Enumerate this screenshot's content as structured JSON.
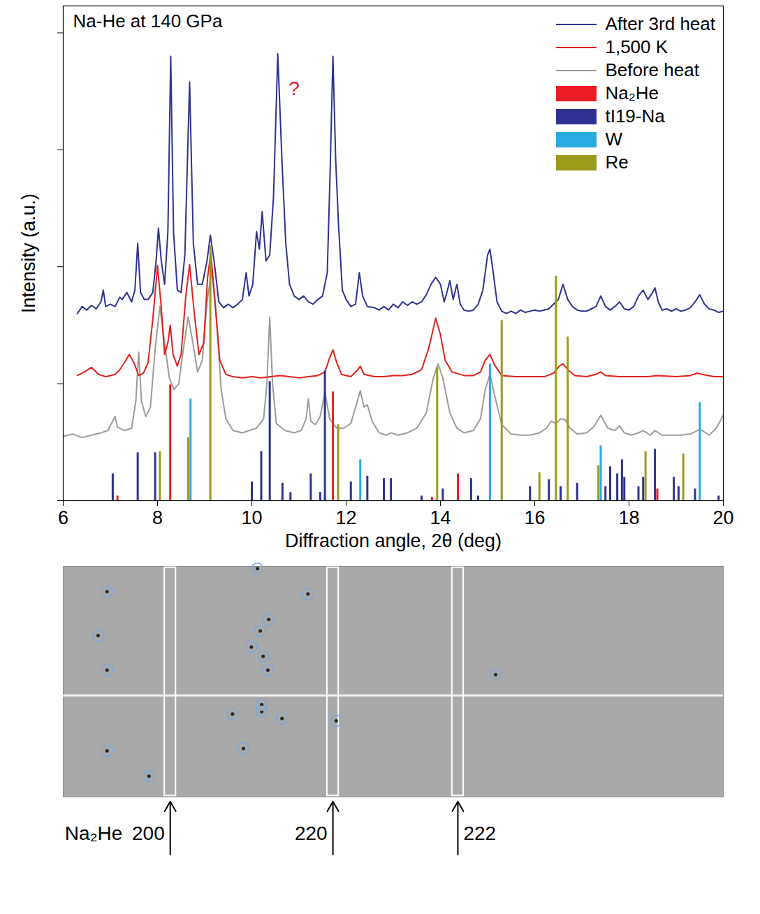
{
  "chart_data": [
    {
      "type": "line",
      "title": "Na-He at 140 GPa",
      "x_label": "Diffraction angle, 2θ (deg)",
      "y_label": "Intensity (a.u.)",
      "xlim": [
        6,
        20
      ],
      "ylim": [
        0,
        4.23
      ],
      "xticks": [
        6,
        8,
        10,
        12,
        14,
        16,
        18,
        20
      ],
      "yticks": [
        0,
        1,
        2,
        3,
        4
      ],
      "tick_labels": "x",
      "legend": "top-right",
      "series": [
        {
          "name": "After 3rd heat",
          "type": "line",
          "color": "#2e3192",
          "x": [
            6.3,
            6.4,
            6.5,
            6.6,
            6.7,
            6.8,
            6.85,
            6.9,
            7.0,
            7.1,
            7.2,
            7.25,
            7.35,
            7.45,
            7.52,
            7.58,
            7.64,
            7.72,
            7.8,
            7.9,
            7.97,
            8.02,
            8.08,
            8.15,
            8.22,
            8.28,
            8.34,
            8.42,
            8.5,
            8.58,
            8.68,
            8.76,
            8.85,
            8.95,
            9.05,
            9.12,
            9.2,
            9.3,
            9.4,
            9.5,
            9.6,
            9.7,
            9.8,
            9.88,
            9.94,
            10.02,
            10.1,
            10.16,
            10.22,
            10.3,
            10.38,
            10.46,
            10.55,
            10.64,
            10.72,
            10.8,
            10.9,
            11.0,
            11.1,
            11.2,
            11.3,
            11.4,
            11.5,
            11.6,
            11.66,
            11.72,
            11.78,
            11.84,
            11.92,
            12.0,
            12.1,
            12.2,
            12.28,
            12.35,
            12.45,
            12.6,
            12.7,
            12.8,
            12.9,
            13.0,
            13.1,
            13.2,
            13.3,
            13.4,
            13.5,
            13.6,
            13.7,
            13.8,
            13.9,
            14.0,
            14.08,
            14.15,
            14.2,
            14.27,
            14.35,
            14.42,
            14.5,
            14.6,
            14.7,
            14.8,
            14.9,
            15.0,
            15.05,
            15.12,
            15.2,
            15.3,
            15.4,
            15.5,
            15.6,
            15.7,
            15.8,
            15.9,
            16.0,
            16.1,
            16.2,
            16.3,
            16.4,
            16.5,
            16.6,
            16.7,
            16.8,
            16.9,
            17.0,
            17.1,
            17.2,
            17.3,
            17.4,
            17.5,
            17.6,
            17.7,
            17.8,
            17.9,
            18.0,
            18.1,
            18.2,
            18.3,
            18.4,
            18.5,
            18.55,
            18.62,
            18.7,
            18.8,
            18.9,
            19.0,
            19.1,
            19.2,
            19.3,
            19.4,
            19.5,
            19.6,
            19.7,
            19.8,
            19.9,
            20.0
          ],
          "values": [
            1.6,
            1.66,
            1.63,
            1.67,
            1.64,
            1.7,
            1.8,
            1.66,
            1.68,
            1.66,
            1.74,
            1.72,
            1.78,
            1.7,
            1.8,
            2.2,
            1.78,
            1.72,
            1.72,
            1.78,
            2.05,
            2.33,
            2.05,
            1.85,
            2.3,
            3.8,
            2.3,
            1.8,
            1.78,
            2.1,
            3.58,
            2.2,
            1.85,
            1.85,
            2.05,
            2.27,
            2.05,
            1.7,
            1.65,
            1.68,
            1.65,
            1.68,
            1.72,
            1.95,
            1.75,
            1.85,
            2.3,
            2.15,
            2.47,
            2.05,
            2.1,
            2.6,
            3.82,
            2.9,
            2.2,
            1.85,
            1.75,
            1.72,
            1.75,
            1.7,
            1.68,
            1.72,
            1.75,
            1.95,
            2.8,
            3.8,
            2.9,
            2.35,
            1.8,
            1.72,
            1.66,
            1.68,
            1.95,
            1.75,
            1.66,
            1.65,
            1.63,
            1.66,
            1.63,
            1.68,
            1.65,
            1.7,
            1.67,
            1.7,
            1.68,
            1.7,
            1.76,
            1.85,
            1.91,
            1.85,
            1.7,
            1.8,
            1.88,
            1.72,
            1.85,
            1.68,
            1.63,
            1.62,
            1.63,
            1.68,
            1.8,
            2.1,
            2.15,
            1.95,
            1.7,
            1.62,
            1.6,
            1.62,
            1.6,
            1.63,
            1.61,
            1.62,
            1.63,
            1.62,
            1.63,
            1.64,
            1.68,
            1.72,
            1.85,
            1.72,
            1.66,
            1.63,
            1.62,
            1.62,
            1.64,
            1.66,
            1.75,
            1.66,
            1.63,
            1.66,
            1.7,
            1.64,
            1.63,
            1.66,
            1.75,
            1.8,
            1.72,
            1.78,
            1.82,
            1.7,
            1.63,
            1.64,
            1.62,
            1.64,
            1.62,
            1.63,
            1.65,
            1.7,
            1.76,
            1.68,
            1.64,
            1.63,
            1.61,
            1.62
          ]
        },
        {
          "name": "1,500 K",
          "type": "line",
          "color": "#e0201b",
          "x": [
            6.3,
            6.45,
            6.6,
            6.75,
            6.9,
            7.0,
            7.1,
            7.2,
            7.3,
            7.4,
            7.5,
            7.6,
            7.7,
            7.8,
            7.9,
            8.0,
            8.08,
            8.15,
            8.22,
            8.27,
            8.33,
            8.42,
            8.5,
            8.6,
            8.68,
            8.78,
            8.88,
            8.98,
            9.06,
            9.13,
            9.22,
            9.32,
            9.45,
            9.6,
            9.8,
            10.0,
            10.2,
            10.4,
            10.6,
            10.8,
            11.0,
            11.2,
            11.4,
            11.55,
            11.65,
            11.72,
            11.8,
            11.9,
            12.1,
            12.25,
            12.3,
            12.38,
            12.6,
            12.8,
            13.0,
            13.2,
            13.4,
            13.6,
            13.75,
            13.9,
            14.0,
            14.1,
            14.25,
            14.5,
            14.7,
            14.85,
            14.95,
            15.05,
            15.15,
            15.3,
            15.6,
            15.9,
            16.2,
            16.4,
            16.52,
            16.6,
            16.7,
            16.85,
            17.1,
            17.3,
            17.4,
            17.5,
            17.8,
            18.1,
            18.4,
            18.6,
            19.0,
            19.3,
            19.45,
            19.55,
            19.8,
            20.0
          ],
          "values": [
            1.07,
            1.1,
            1.14,
            1.08,
            1.06,
            1.07,
            1.08,
            1.12,
            1.18,
            1.25,
            1.18,
            1.07,
            1.09,
            1.18,
            1.55,
            2.01,
            1.65,
            1.25,
            1.35,
            1.5,
            1.25,
            1.15,
            1.25,
            1.75,
            2.02,
            1.6,
            1.25,
            1.35,
            1.9,
            2.12,
            1.7,
            1.2,
            1.08,
            1.06,
            1.05,
            1.06,
            1.05,
            1.06,
            1.07,
            1.06,
            1.05,
            1.06,
            1.07,
            1.1,
            1.22,
            1.29,
            1.18,
            1.08,
            1.06,
            1.12,
            1.15,
            1.08,
            1.06,
            1.06,
            1.07,
            1.07,
            1.08,
            1.12,
            1.3,
            1.56,
            1.42,
            1.2,
            1.1,
            1.07,
            1.07,
            1.1,
            1.2,
            1.25,
            1.16,
            1.07,
            1.06,
            1.06,
            1.06,
            1.09,
            1.15,
            1.17,
            1.12,
            1.07,
            1.06,
            1.08,
            1.1,
            1.07,
            1.06,
            1.06,
            1.06,
            1.07,
            1.06,
            1.07,
            1.09,
            1.08,
            1.06,
            1.06
          ]
        },
        {
          "name": "Before heat",
          "type": "line",
          "color": "#9b9b9b",
          "x": [
            6.0,
            6.2,
            6.4,
            6.6,
            6.8,
            6.95,
            7.05,
            7.1,
            7.15,
            7.3,
            7.45,
            7.54,
            7.6,
            7.66,
            7.75,
            7.85,
            7.95,
            8.05,
            8.15,
            8.25,
            8.35,
            8.45,
            8.55,
            8.65,
            8.75,
            8.85,
            8.95,
            9.05,
            9.15,
            9.25,
            9.35,
            9.45,
            9.6,
            9.8,
            9.95,
            10.1,
            10.25,
            10.32,
            10.38,
            10.44,
            10.52,
            10.7,
            10.9,
            11.05,
            11.15,
            11.2,
            11.25,
            11.35,
            11.45,
            11.55,
            11.65,
            11.8,
            11.95,
            12.1,
            12.2,
            12.3,
            12.38,
            12.45,
            12.55,
            12.7,
            12.85,
            12.95,
            13.1,
            13.3,
            13.5,
            13.7,
            13.85,
            13.95,
            14.05,
            14.2,
            14.35,
            14.5,
            14.7,
            14.85,
            14.95,
            15.05,
            15.15,
            15.3,
            15.5,
            15.7,
            15.9,
            16.1,
            16.25,
            16.35,
            16.45,
            16.55,
            16.65,
            16.75,
            16.9,
            17.1,
            17.25,
            17.4,
            17.55,
            17.7,
            17.8,
            17.9,
            18.05,
            18.2,
            18.3,
            18.45,
            18.55,
            18.7,
            18.9,
            19.1,
            19.3,
            19.45,
            19.55,
            19.7,
            19.85,
            20.0
          ],
          "values": [
            0.55,
            0.57,
            0.54,
            0.56,
            0.58,
            0.6,
            0.68,
            0.72,
            0.63,
            0.6,
            0.62,
            0.85,
            1.27,
            0.85,
            0.72,
            0.8,
            1.3,
            1.66,
            1.35,
            1.05,
            0.95,
            1.0,
            1.3,
            1.57,
            1.35,
            1.1,
            1.2,
            1.7,
            1.97,
            1.55,
            0.95,
            0.7,
            0.6,
            0.58,
            0.6,
            0.62,
            0.7,
            1.0,
            1.57,
            1.0,
            0.66,
            0.6,
            0.58,
            0.6,
            0.7,
            0.87,
            0.68,
            0.65,
            0.72,
            0.93,
            0.7,
            0.62,
            0.62,
            0.66,
            0.8,
            0.94,
            0.8,
            0.82,
            0.68,
            0.58,
            0.56,
            0.58,
            0.56,
            0.58,
            0.62,
            0.75,
            1.05,
            1.17,
            1.05,
            0.75,
            0.62,
            0.58,
            0.6,
            0.7,
            0.95,
            1.08,
            0.9,
            0.65,
            0.57,
            0.56,
            0.56,
            0.58,
            0.62,
            0.68,
            0.66,
            0.7,
            0.69,
            0.62,
            0.57,
            0.58,
            0.63,
            0.73,
            0.62,
            0.6,
            0.64,
            0.58,
            0.56,
            0.58,
            0.6,
            0.56,
            0.6,
            0.56,
            0.56,
            0.56,
            0.57,
            0.6,
            0.6,
            0.56,
            0.62,
            0.73
          ]
        },
        {
          "name": "Na₂He",
          "type": "stick",
          "color": "#ed1c24",
          "x": [
            7.15,
            8.27,
            11.72,
            13.82,
            14.37,
            16.55,
            18.6
          ],
          "values": [
            0.04,
            0.99,
            0.93,
            0.03,
            0.23,
            0.12,
            0.1
          ]
        },
        {
          "name": "tI19-Na",
          "type": "stick",
          "color": "#2e3192",
          "x": [
            7.05,
            7.58,
            7.95,
            10.0,
            10.2,
            10.38,
            10.65,
            10.82,
            11.25,
            11.45,
            11.55,
            12.1,
            12.45,
            12.8,
            12.95,
            13.6,
            14.05,
            14.65,
            14.8,
            15.9,
            16.3,
            16.55,
            16.9,
            17.5,
            17.6,
            17.75,
            17.85,
            17.9,
            18.2,
            18.3,
            18.55,
            18.95,
            19.05,
            19.4,
            19.9
          ],
          "values": [
            0.23,
            0.41,
            0.41,
            0.16,
            0.42,
            1.02,
            0.15,
            0.07,
            0.23,
            0.07,
            1.11,
            0.16,
            0.21,
            0.19,
            0.19,
            0.04,
            0.1,
            0.19,
            0.04,
            0.12,
            0.18,
            0.12,
            0.15,
            0.12,
            0.29,
            0.23,
            0.35,
            0.2,
            0.12,
            0.2,
            0.44,
            0.2,
            0.12,
            0.1,
            0.04
          ]
        },
        {
          "name": "W",
          "type": "stick",
          "color": "#29abe2",
          "x": [
            8.7,
            12.3,
            15.05,
            17.4,
            19.5
          ],
          "values": [
            0.87,
            0.35,
            1.17,
            0.47,
            0.84
          ]
        },
        {
          "name": "Re",
          "type": "stick",
          "color": "#9c9a1a",
          "x": [
            8.05,
            8.65,
            9.12,
            11.83,
            13.93,
            15.3,
            16.1,
            16.45,
            16.7,
            17.35,
            18.35,
            19.15
          ],
          "values": [
            0.42,
            0.54,
            2.18,
            0.65,
            1.14,
            1.54,
            0.24,
            1.92,
            1.4,
            0.3,
            0.42,
            0.4
          ]
        }
      ],
      "annotations": [
        {
          "text": "?",
          "x": 10.78,
          "y": 3.52,
          "color": "#e0201b"
        }
      ]
    },
    {
      "type": "image",
      "phase_label": "Na₂He",
      "xlim": [
        6,
        20
      ],
      "ylim": [
        0,
        1
      ],
      "tick_labels": false,
      "reflections": [
        {
          "label": "200",
          "x": 8.27
        },
        {
          "label": "220",
          "x": 11.72
        },
        {
          "label": "222",
          "x": 14.37
        }
      ],
      "circled_spots": {
        "x": [
          6.93,
          6.74,
          6.93,
          6.93,
          7.82,
          10.12,
          11.19,
          10.36,
          10.18,
          9.99,
          10.24,
          10.34,
          10.21,
          10.21,
          9.59,
          10.64,
          9.82,
          11.79,
          15.17
        ],
        "y": [
          0.89,
          0.7,
          0.55,
          0.2,
          0.09,
          0.99,
          0.88,
          0.77,
          0.72,
          0.65,
          0.61,
          0.55,
          0.4,
          0.37,
          0.36,
          0.34,
          0.21,
          0.33,
          0.53
        ]
      }
    }
  ]
}
